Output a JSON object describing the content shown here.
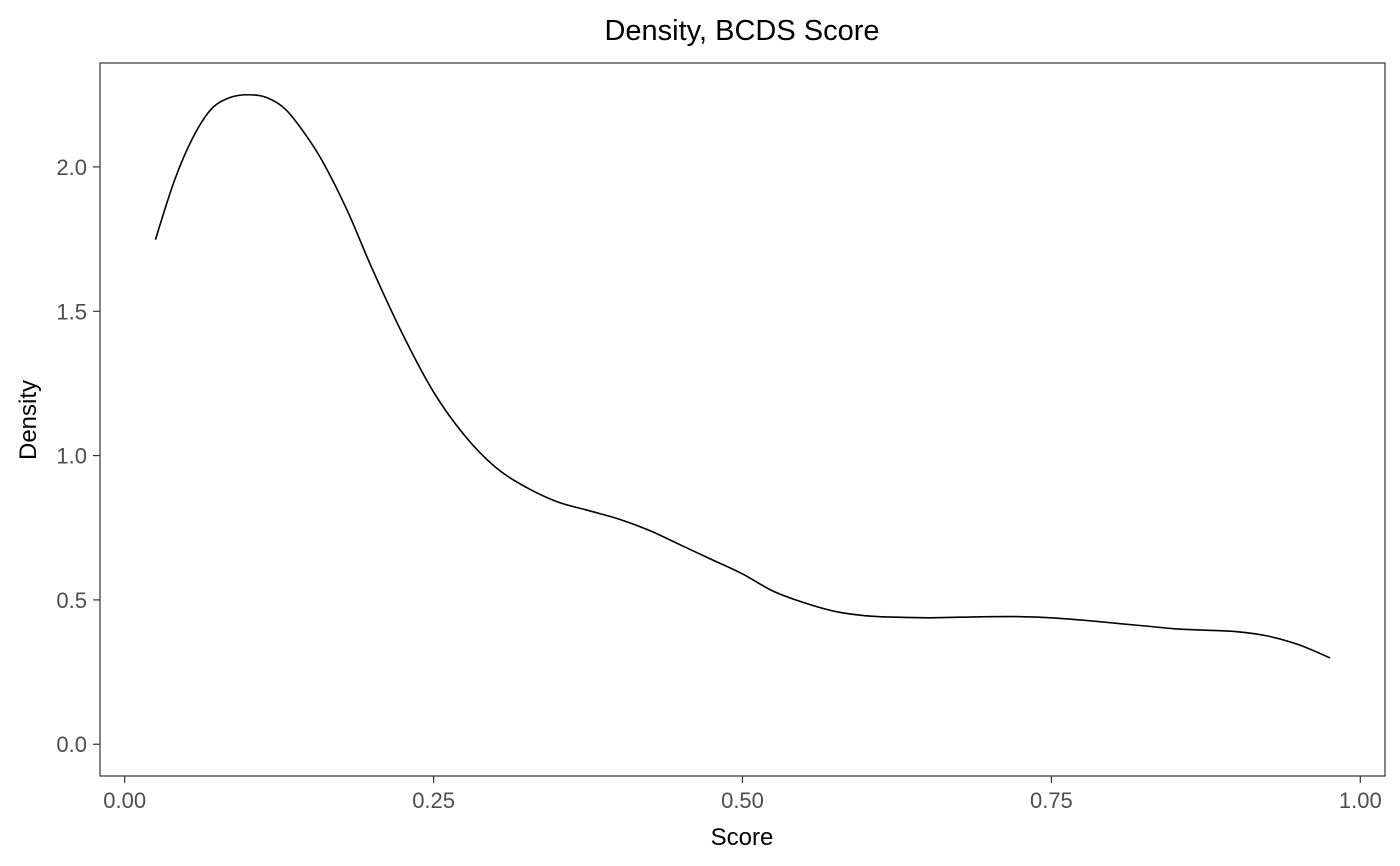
{
  "chart_data": {
    "type": "line",
    "title": "Density, BCDS Score",
    "xlabel": "Score",
    "ylabel": "Density",
    "xlim": [
      -0.02,
      1.02
    ],
    "ylim": [
      -0.11,
      2.36
    ],
    "x_ticks": [
      0,
      0.25,
      0.5,
      0.75,
      1
    ],
    "x_tick_labels": [
      "0.00",
      "0.25",
      "0.50",
      "0.75",
      "1.00"
    ],
    "y_ticks": [
      0,
      0.5,
      1,
      1.5,
      2
    ],
    "y_tick_labels": [
      "0.0",
      "0.5",
      "1.0",
      "1.5",
      "2.0"
    ],
    "grid": false,
    "legend": "none",
    "line_color": "#000000",
    "series": [
      {
        "x": [
          0.025,
          0.04,
          0.055,
          0.07,
          0.085,
          0.1,
          0.115,
          0.13,
          0.145,
          0.16,
          0.18,
          0.2,
          0.225,
          0.25,
          0.275,
          0.3,
          0.325,
          0.35,
          0.375,
          0.4,
          0.425,
          0.45,
          0.475,
          0.5,
          0.525,
          0.55,
          0.575,
          0.6,
          0.625,
          0.65,
          0.675,
          0.7,
          0.725,
          0.75,
          0.775,
          0.8,
          0.825,
          0.85,
          0.875,
          0.9,
          0.925,
          0.95,
          0.975
        ],
        "y": [
          1.75,
          1.95,
          2.1,
          2.2,
          2.24,
          2.25,
          2.24,
          2.2,
          2.12,
          2.02,
          1.85,
          1.65,
          1.42,
          1.22,
          1.07,
          0.96,
          0.89,
          0.84,
          0.81,
          0.78,
          0.74,
          0.69,
          0.64,
          0.59,
          0.53,
          0.49,
          0.46,
          0.445,
          0.44,
          0.438,
          0.44,
          0.442,
          0.442,
          0.438,
          0.43,
          0.42,
          0.41,
          0.4,
          0.395,
          0.39,
          0.375,
          0.345,
          0.3
        ]
      }
    ]
  }
}
